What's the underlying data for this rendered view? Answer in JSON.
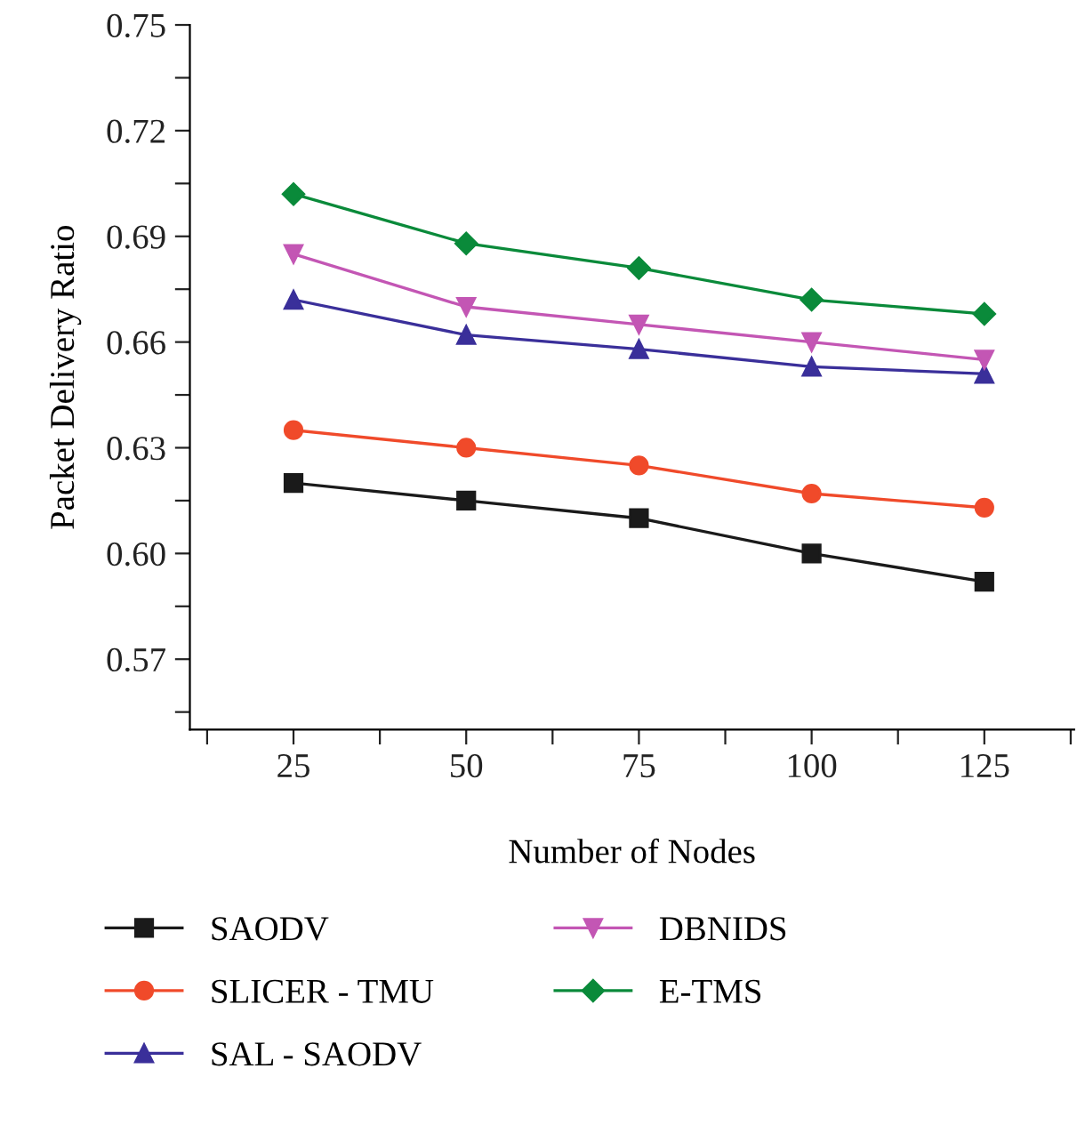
{
  "chart_data": {
    "type": "line",
    "xlabel": "Number of Nodes",
    "ylabel": "Packet Delivery Ratio",
    "x": [
      25,
      50,
      75,
      100,
      125
    ],
    "series": [
      {
        "name": "SAODV",
        "color": "#1a1a1a",
        "marker": "square",
        "values": [
          0.62,
          0.615,
          0.61,
          0.6,
          0.592
        ]
      },
      {
        "name": "SLICER - TMU",
        "color": "#f04a2a",
        "marker": "circle",
        "values": [
          0.635,
          0.63,
          0.625,
          0.617,
          0.613
        ]
      },
      {
        "name": "SAL - SAODV",
        "color": "#3a2f9a",
        "marker": "triangle",
        "values": [
          0.672,
          0.662,
          0.658,
          0.653,
          0.651
        ]
      },
      {
        "name": "DBNIDS",
        "color": "#c356b4",
        "marker": "triangle_down",
        "values": [
          0.685,
          0.67,
          0.665,
          0.66,
          0.655
        ]
      },
      {
        "name": "E-TMS",
        "color": "#0a8a3a",
        "marker": "diamond",
        "values": [
          0.702,
          0.688,
          0.681,
          0.672,
          0.668
        ]
      }
    ],
    "xlim": [
      10,
      138
    ],
    "xticks": [
      {
        "value": 12.5,
        "label": null
      },
      25,
      {
        "value": 37.5,
        "label": null
      },
      50,
      {
        "value": 62.5,
        "label": null
      },
      75,
      {
        "value": 87.5,
        "label": null
      },
      100,
      {
        "value": 112.5,
        "label": null
      },
      125,
      {
        "value": 137.5,
        "label": null
      }
    ],
    "ylim": [
      0.55,
      0.75
    ],
    "yticks": [
      {
        "value": 0.555,
        "label": null
      },
      {
        "value": 0.57,
        "label": "0.57"
      },
      {
        "value": 0.585,
        "label": null
      },
      {
        "value": 0.6,
        "label": "0.60"
      },
      {
        "value": 0.615,
        "label": null
      },
      {
        "value": 0.63,
        "label": "0.63"
      },
      {
        "value": 0.645,
        "label": null
      },
      {
        "value": 0.66,
        "label": "0.66"
      },
      {
        "value": 0.675,
        "label": null
      },
      {
        "value": 0.69,
        "label": "0.69"
      },
      {
        "value": 0.705,
        "label": null
      },
      {
        "value": 0.72,
        "label": "0.72"
      },
      {
        "value": 0.735,
        "label": null
      },
      {
        "value": 0.75,
        "label": "0.75"
      }
    ],
    "line_style": "solid",
    "grid": false,
    "legend": "bottom"
  }
}
